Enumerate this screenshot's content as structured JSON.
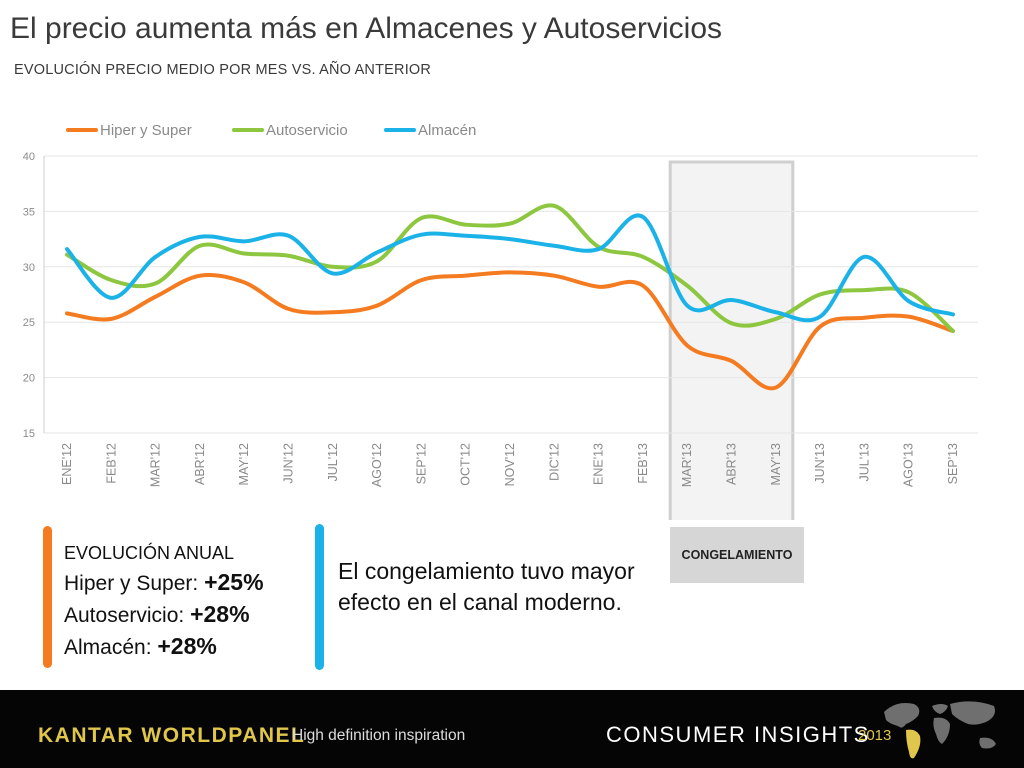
{
  "slide": {
    "title": "El precio aumenta más en Almacenes y Autoservicios",
    "subtitle": "EVOLUCIÓN PRECIO MEDIO POR MES VS. AÑO ANTERIOR"
  },
  "chart_data": {
    "type": "line",
    "categories": [
      "ENE'12",
      "FEB'12",
      "MAR'12",
      "ABR'12",
      "MAY'12",
      "JUN'12",
      "JUL'12",
      "AGO'12",
      "SEP'12",
      "OCT'12",
      "NOV'12",
      "DIC'12",
      "ENE'13",
      "FEB'13",
      "MAR'13",
      "ABR'13",
      "MAY'13",
      "JUN'13",
      "JUL'13",
      "AGO'13",
      "SEP'13"
    ],
    "series": [
      {
        "name": "Hiper y Super",
        "color": "#f47b20",
        "values": [
          25.8,
          25.3,
          27.3,
          29.2,
          28.6,
          26.2,
          25.9,
          26.5,
          28.8,
          29.2,
          29.5,
          29.2,
          28.2,
          28.3,
          22.9,
          21.5,
          19.1,
          24.6,
          25.4,
          25.5,
          24.2
        ]
      },
      {
        "name": "Autoservicio",
        "color": "#8dc63f",
        "values": [
          31.1,
          28.8,
          28.5,
          31.9,
          31.2,
          31.0,
          30.0,
          30.5,
          34.4,
          33.8,
          33.9,
          35.5,
          31.8,
          30.9,
          28.3,
          24.9,
          25.3,
          27.5,
          27.9,
          27.7,
          24.2
        ]
      },
      {
        "name": "Almacén",
        "color": "#1bb2e8",
        "values": [
          31.6,
          27.2,
          30.9,
          32.7,
          32.3,
          32.8,
          29.4,
          31.3,
          32.9,
          32.8,
          32.5,
          31.9,
          31.6,
          34.5,
          26.5,
          27.0,
          25.9,
          25.5,
          30.9,
          26.9,
          25.7
        ]
      }
    ],
    "y_ticks": [
      "40",
      "35",
      "30",
      "25",
      "20",
      "15"
    ],
    "ylim": [
      15,
      40
    ],
    "grid": true,
    "legend_position": "top-left",
    "highlight": {
      "from": "MAR'13",
      "to": "MAY'13",
      "label": "CONGELAMIENTO"
    }
  },
  "annual": {
    "heading": "EVOLUCIÓN ANUAL",
    "rows": [
      {
        "label": "Hiper y Super: ",
        "value": "+25%"
      },
      {
        "label": "Autoservicio: ",
        "value": "+28%"
      },
      {
        "label": "Almacén: ",
        "value": "+28%"
      }
    ]
  },
  "note": "El congelamiento tuvo mayor efecto en el canal moderno.",
  "footer": {
    "brand": "KANTAR WORLDPANEL",
    "tagline": "High definition inspiration",
    "section": "CONSUMER INSIGHTS",
    "year": "2013"
  },
  "colors": {
    "accent_orange": "#f47b20",
    "accent_blue": "#1bb2e8",
    "footer_bg": "#050505",
    "brand_gold": "#e0c64a"
  }
}
